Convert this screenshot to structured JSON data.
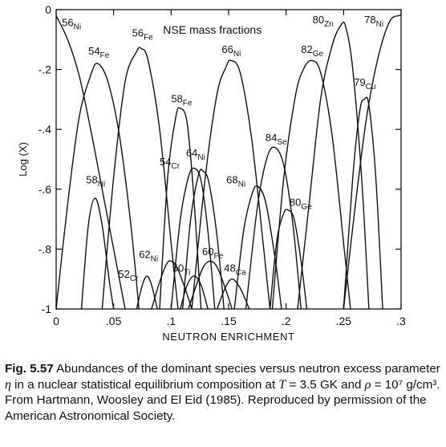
{
  "chart_data": {
    "type": "line",
    "title": "NSE mass fractions",
    "xlabel": "NEUTRON ENRICHMENT",
    "ylabel": "Log (X)",
    "xlim": [
      0,
      0.3
    ],
    "ylim": [
      -1,
      0
    ],
    "xticks": [
      {
        "v": 0,
        "label": "0"
      },
      {
        "v": 0.05,
        "label": ".05"
      },
      {
        "v": 0.1,
        "label": ".1"
      },
      {
        "v": 0.15,
        "label": ".15"
      },
      {
        "v": 0.2,
        "label": ".2"
      },
      {
        "v": 0.25,
        "label": ".25"
      },
      {
        "v": 0.3,
        "label": ".3"
      }
    ],
    "yticks": [
      {
        "v": 0,
        "label": "0"
      },
      {
        "v": -0.2,
        "label": "-.2"
      },
      {
        "v": -0.4,
        "label": "-.4"
      },
      {
        "v": -0.6,
        "label": "-.6"
      },
      {
        "v": -0.8,
        "label": "-.8"
      },
      {
        "v": -1,
        "label": "-1"
      }
    ],
    "grid": false,
    "series": [
      {
        "name": "56Ni",
        "mass": "56",
        "el": "Ni",
        "x": [
          0.0,
          0.01,
          0.02,
          0.03,
          0.04,
          0.05,
          0.06
        ],
        "y": [
          -0.02,
          -0.1,
          -0.22,
          -0.4,
          -0.6,
          -0.8,
          -1.0
        ]
      },
      {
        "name": "54Fe",
        "mass": "54",
        "el": "Fe",
        "x": [
          0.0,
          0.01,
          0.02,
          0.03,
          0.036,
          0.045,
          0.055,
          0.065,
          0.072
        ],
        "y": [
          -1.0,
          -0.65,
          -0.36,
          -0.22,
          -0.18,
          -0.24,
          -0.42,
          -0.72,
          -1.0
        ]
      },
      {
        "name": "56Fe",
        "mass": "56",
        "el": "Fe",
        "x": [
          0.04,
          0.05,
          0.06,
          0.07,
          0.074,
          0.08,
          0.09,
          0.1,
          0.106
        ],
        "y": [
          -1.0,
          -0.56,
          -0.24,
          -0.14,
          -0.13,
          -0.17,
          -0.4,
          -0.78,
          -1.0
        ]
      },
      {
        "name": "58Ni",
        "mass": "58",
        "el": "Ni",
        "x": [
          0.022,
          0.028,
          0.034,
          0.04,
          0.046,
          0.05
        ],
        "y": [
          -1.0,
          -0.72,
          -0.63,
          -0.72,
          -0.9,
          -1.0
        ]
      },
      {
        "name": "58Fe",
        "mass": "58",
        "el": "Fe",
        "x": [
          0.09,
          0.097,
          0.104,
          0.108,
          0.114,
          0.12,
          0.126
        ],
        "y": [
          -1.0,
          -0.56,
          -0.36,
          -0.33,
          -0.38,
          -0.64,
          -1.0
        ]
      },
      {
        "name": "54Cr",
        "mass": "54",
        "el": "Cr",
        "x": [
          0.1,
          0.108,
          0.115,
          0.12,
          0.126,
          0.132,
          0.138
        ],
        "y": [
          -1.0,
          -0.7,
          -0.56,
          -0.53,
          -0.57,
          -0.74,
          -1.0
        ]
      },
      {
        "name": "64Ni",
        "mass": "64",
        "el": "Ni",
        "x": [
          0.11,
          0.117,
          0.124,
          0.128,
          0.133,
          0.14,
          0.146
        ],
        "y": [
          -1.0,
          -0.7,
          -0.55,
          -0.54,
          -0.58,
          -0.76,
          -1.0
        ]
      },
      {
        "name": "66Ni",
        "mass": "66",
        "el": "Ni",
        "x": [
          0.118,
          0.13,
          0.14,
          0.148,
          0.152,
          0.16,
          0.17,
          0.18,
          0.186
        ],
        "y": [
          -1.0,
          -0.55,
          -0.28,
          -0.19,
          -0.17,
          -0.21,
          -0.43,
          -0.78,
          -1.0
        ]
      },
      {
        "name": "68Ni",
        "mass": "68",
        "el": "Ni",
        "x": [
          0.155,
          0.163,
          0.17,
          0.175,
          0.182,
          0.19,
          0.196
        ],
        "y": [
          -1.0,
          -0.74,
          -0.62,
          -0.59,
          -0.64,
          -0.82,
          -1.0
        ]
      },
      {
        "name": "84Se",
        "mass": "84",
        "el": "Se",
        "x": [
          0.165,
          0.175,
          0.183,
          0.19,
          0.198,
          0.206,
          0.213
        ],
        "y": [
          -1.0,
          -0.66,
          -0.5,
          -0.46,
          -0.52,
          -0.72,
          -1.0
        ]
      },
      {
        "name": "82Ge",
        "mass": "82",
        "el": "Ge",
        "x": [
          0.188,
          0.198,
          0.208,
          0.215,
          0.222,
          0.23,
          0.24,
          0.25,
          0.256
        ],
        "y": [
          -1.0,
          -0.56,
          -0.29,
          -0.2,
          -0.17,
          -0.21,
          -0.42,
          -0.78,
          -1.0
        ]
      },
      {
        "name": "80Ge",
        "mass": "80",
        "el": "Ge",
        "x": [
          0.186,
          0.192,
          0.198,
          0.202,
          0.207,
          0.213,
          0.218
        ],
        "y": [
          -1.0,
          -0.77,
          -0.68,
          -0.67,
          -0.7,
          -0.84,
          -1.0
        ]
      },
      {
        "name": "80Zn",
        "mass": "80",
        "el": "Zn",
        "x": [
          0.21,
          0.22,
          0.23,
          0.24,
          0.248,
          0.252,
          0.258,
          0.266,
          0.272
        ],
        "y": [
          -1.0,
          -0.65,
          -0.3,
          -0.12,
          -0.05,
          -0.06,
          -0.2,
          -0.58,
          -1.0
        ]
      },
      {
        "name": "79Cu",
        "mass": "79",
        "el": "Cu",
        "x": [
          0.25,
          0.258,
          0.264,
          0.268,
          0.272,
          0.278,
          0.284
        ],
        "y": [
          -1.0,
          -0.56,
          -0.34,
          -0.3,
          -0.32,
          -0.56,
          -1.0
        ]
      },
      {
        "name": "78Ni",
        "mass": "78",
        "el": "Ni",
        "x": [
          0.25,
          0.26,
          0.27,
          0.28,
          0.29,
          0.298,
          0.3
        ],
        "y": [
          -1.0,
          -0.66,
          -0.36,
          -0.16,
          -0.04,
          -0.02,
          -0.02
        ]
      },
      {
        "name": "52Cr",
        "mass": "52",
        "el": "Cr",
        "x": [
          0.07,
          0.075,
          0.079,
          0.083,
          0.088
        ],
        "y": [
          -1.0,
          -0.92,
          -0.89,
          -0.92,
          -1.0
        ]
      },
      {
        "name": "62Ni",
        "mass": "62",
        "el": "Ni",
        "x": [
          0.083,
          0.09,
          0.096,
          0.1,
          0.105,
          0.112,
          0.118
        ],
        "y": [
          -1.0,
          -0.91,
          -0.85,
          -0.84,
          -0.86,
          -0.93,
          -1.0
        ]
      },
      {
        "name": "50Ti",
        "mass": "50",
        "el": "Ti",
        "x": [
          0.108,
          0.114,
          0.12,
          0.126,
          0.132
        ],
        "y": [
          -1.0,
          -0.92,
          -0.89,
          -0.92,
          -1.0
        ]
      },
      {
        "name": "60Fe",
        "mass": "60",
        "el": "Fe",
        "x": [
          0.115,
          0.122,
          0.128,
          0.134,
          0.14,
          0.147,
          0.153
        ],
        "y": [
          -1.0,
          -0.92,
          -0.86,
          -0.84,
          -0.86,
          -0.93,
          -1.0
        ]
      },
      {
        "name": "48Ca",
        "mass": "48",
        "el": "Ca",
        "x": [
          0.14,
          0.147,
          0.153,
          0.16,
          0.168
        ],
        "y": [
          -1.0,
          -0.93,
          -0.9,
          -0.93,
          -1.0
        ]
      }
    ],
    "labels": [
      {
        "mass": "56",
        "el": "Ni",
        "x": 0.005,
        "y": -0.055
      },
      {
        "mass": "54",
        "el": "Fe",
        "x": 0.028,
        "y": -0.15
      },
      {
        "mass": "56",
        "el": "Fe",
        "x": 0.066,
        "y": -0.09
      },
      {
        "mass": "58",
        "el": "Ni",
        "x": 0.026,
        "y": -0.58
      },
      {
        "mass": "58",
        "el": "Fe",
        "x": 0.1,
        "y": -0.31
      },
      {
        "mass": "54",
        "el": "Cr",
        "x": 0.09,
        "y": -0.52
      },
      {
        "mass": "64",
        "el": "Ni",
        "x": 0.113,
        "y": -0.49
      },
      {
        "mass": "66",
        "el": "Ni",
        "x": 0.144,
        "y": -0.145
      },
      {
        "mass": "68",
        "el": "Ni",
        "x": 0.148,
        "y": -0.58
      },
      {
        "mass": "84",
        "el": "Se",
        "x": 0.182,
        "y": -0.44
      },
      {
        "mass": "82",
        "el": "Ge",
        "x": 0.213,
        "y": -0.145
      },
      {
        "mass": "80",
        "el": "Ge",
        "x": 0.203,
        "y": -0.655
      },
      {
        "mass": "80",
        "el": "Zn",
        "x": 0.223,
        "y": -0.045
      },
      {
        "mass": "79",
        "el": "Cu",
        "x": 0.259,
        "y": -0.255
      },
      {
        "mass": "78",
        "el": "Ni",
        "x": 0.268,
        "y": -0.045
      },
      {
        "mass": "52",
        "el": "Cr",
        "x": 0.054,
        "y": -0.895
      },
      {
        "mass": "62",
        "el": "Ni",
        "x": 0.072,
        "y": -0.83
      },
      {
        "mass": "50",
        "el": "Ti",
        "x": 0.101,
        "y": -0.875
      },
      {
        "mass": "60",
        "el": "Fe",
        "x": 0.127,
        "y": -0.82
      },
      {
        "mass": "48",
        "el": "Ca",
        "x": 0.146,
        "y": -0.875
      }
    ]
  },
  "caption": {
    "label": "Fig. 5.57",
    "text1": "Abundances of the dominant species versus neutron excess parameter",
    "eta": "η",
    "text2": "in a nuclear statistical equilibrium composition at",
    "T": "T",
    "text3": "= 3.5 GK and",
    "rho": "ρ",
    "text4": "= 10⁷ g/cm³. From Hartmann, Woosley and El Eid (1985). Reproduced by permission of the American Astronomical Society."
  }
}
